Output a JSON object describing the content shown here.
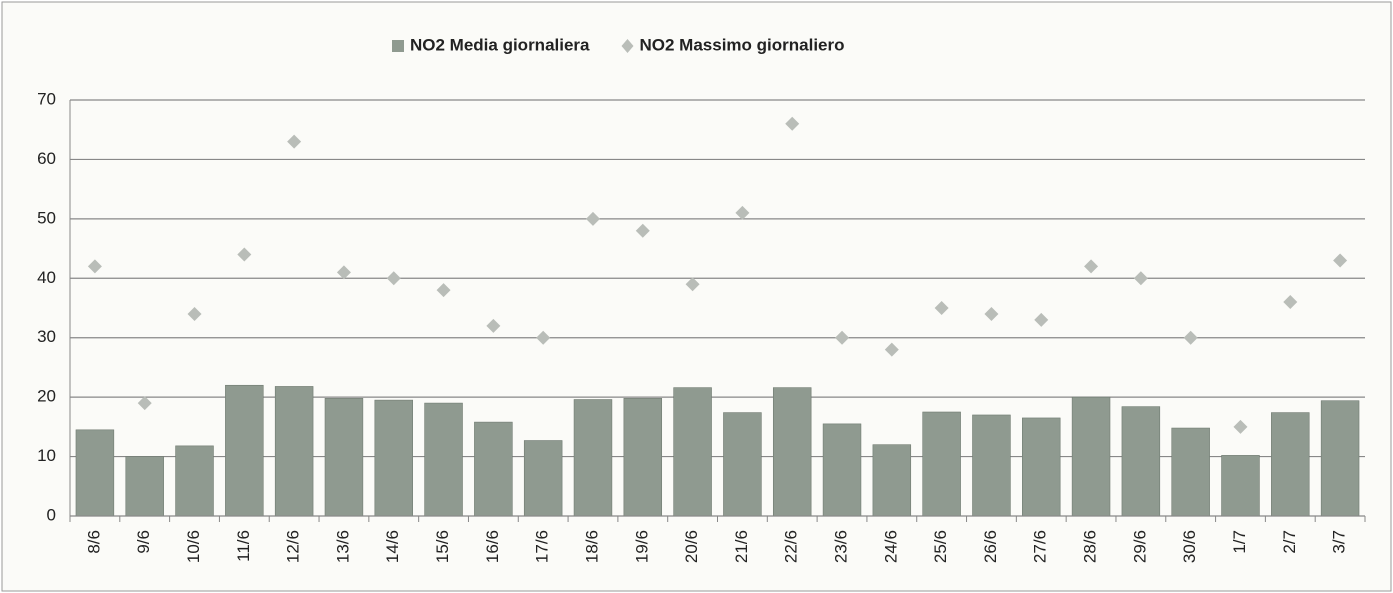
{
  "chart_data": {
    "type": "bar",
    "categories": [
      "8/6",
      "9/6",
      "10/6",
      "11/6",
      "12/6",
      "13/6",
      "14/6",
      "15/6",
      "16/6",
      "17/6",
      "18/6",
      "19/6",
      "20/6",
      "21/6",
      "22/6",
      "23/6",
      "24/6",
      "25/6",
      "26/6",
      "27/6",
      "28/6",
      "29/6",
      "30/6",
      "1/7",
      "2/7",
      "3/7"
    ],
    "series": [
      {
        "name": "NO2 Media giornaliera",
        "type": "bar",
        "color": "#8f9a90",
        "values": [
          14.5,
          10,
          11.8,
          22,
          21.8,
          19.8,
          19.5,
          19,
          15.8,
          12.7,
          19.6,
          19.8,
          21.6,
          17.4,
          21.6,
          15.5,
          12,
          17.5,
          17,
          16.5,
          20,
          18.4,
          14.8,
          10.2,
          17.4,
          19.4
        ]
      },
      {
        "name": "NO2 Massimo giornaliero",
        "type": "scatter",
        "color": "#b9bdb8",
        "values": [
          42,
          19,
          34,
          44,
          63,
          41,
          40,
          38,
          32,
          30,
          50,
          48,
          39,
          51,
          66,
          30,
          28,
          35,
          34,
          33,
          42,
          40,
          30,
          15,
          36,
          43
        ]
      }
    ],
    "ylim": [
      0,
      70
    ],
    "yticks": [
      0,
      10,
      20,
      30,
      40,
      50,
      60,
      70
    ],
    "grid": true,
    "legend": "top"
  }
}
